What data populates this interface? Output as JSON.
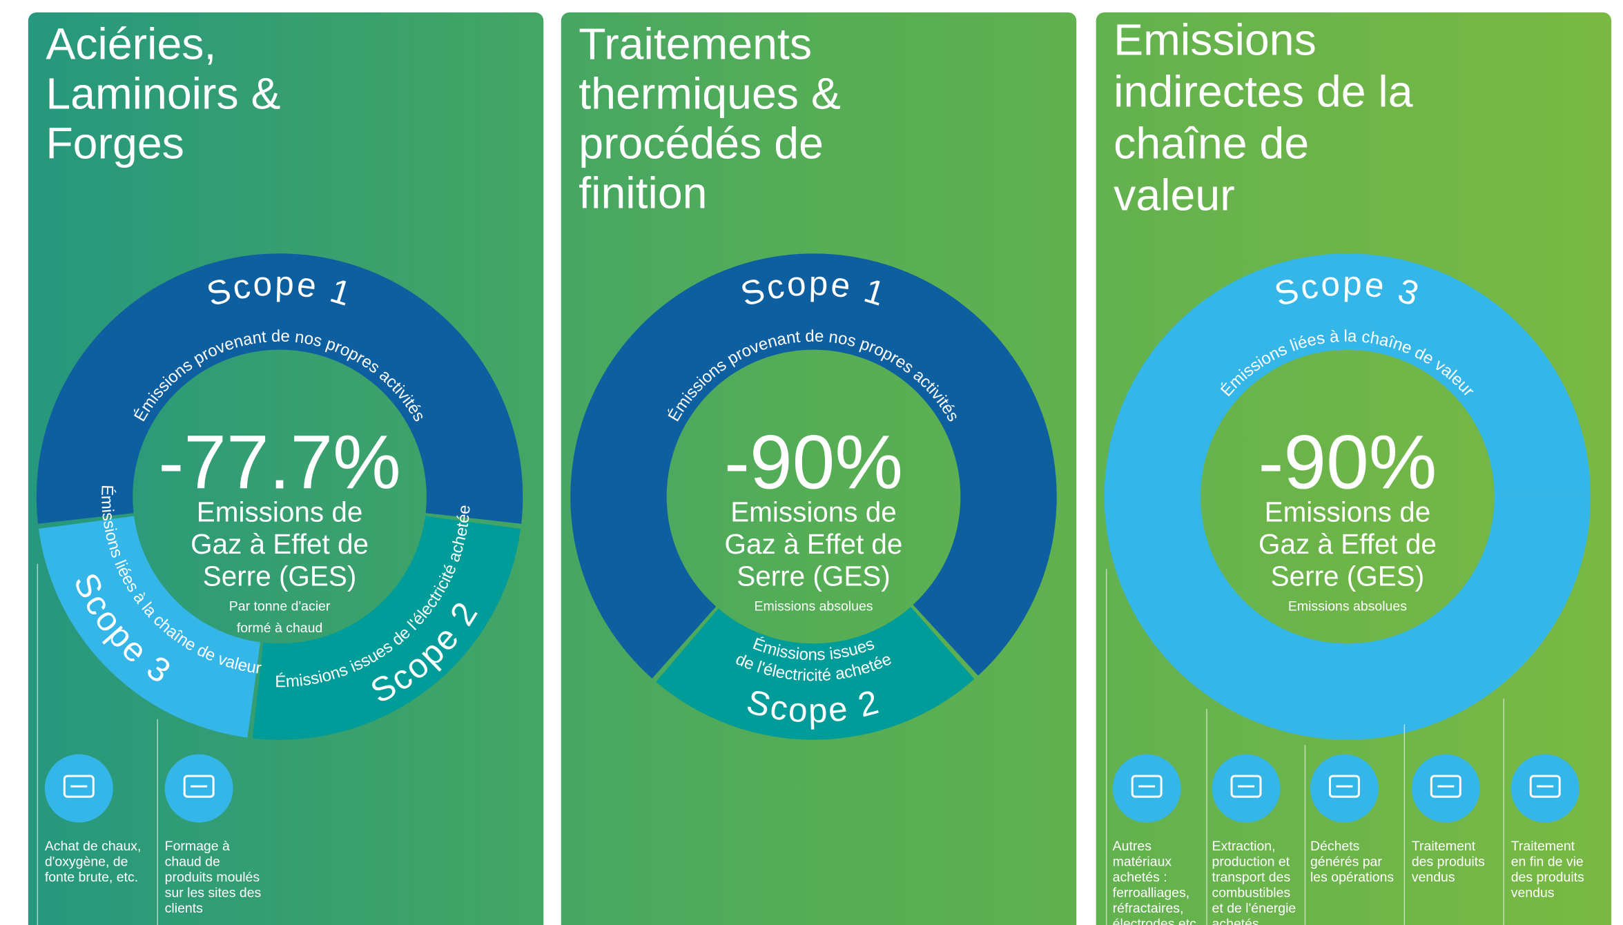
{
  "panels": [
    {
      "title": [
        "Aciéries,",
        "Laminoirs &",
        "Forges"
      ],
      "scopes": [
        {
          "name": "Scope 1",
          "description": [
            "Émissions provenant de nos propres activités"
          ]
        },
        {
          "name": "Scope 2",
          "description": [
            "Émissions issues de l'électricité achetée"
          ]
        },
        {
          "name": "Scope 3",
          "description": [
            "Émissions liées à la chaîne de valeur"
          ]
        }
      ],
      "reduction": "-77.7%",
      "metric": [
        "Emissions de",
        "Gaz à Effet de",
        "Serre (GES)"
      ],
      "note": [
        "Par tonne d'acier",
        "formé à chaud"
      ],
      "items": [
        {
          "label": [
            "Achat de chaux,",
            "d'oxygène, de",
            "fonte brute, etc."
          ]
        },
        {
          "label": [
            "Formage à",
            "chaud de",
            "produits moulés",
            "sur les sites des",
            "clients"
          ]
        }
      ]
    },
    {
      "title": [
        "Traitements",
        "thermiques &",
        "procédés de",
        "finition"
      ],
      "scopes": [
        {
          "name": "Scope 1",
          "description": [
            "Émissions provenant de nos propres activités"
          ]
        },
        {
          "name": "Scope 2",
          "description": [
            "Émissions issues",
            "de l'électricité achetée"
          ]
        }
      ],
      "reduction": "-90%",
      "metric": [
        "Emissions de",
        "Gaz à Effet de",
        "Serre (GES)"
      ],
      "note": [
        "Emissions absolues"
      ]
    },
    {
      "title": [
        "Emissions",
        "indirectes de la",
        "chaîne de",
        "valeur"
      ],
      "scopes": [
        {
          "name": "Scope 3",
          "description": [
            "Émissions liées à la chaîne de valeur"
          ]
        }
      ],
      "reduction": "-90%",
      "metric": [
        "Emissions de",
        "Gaz à Effet de",
        "Serre (GES)"
      ],
      "note": [
        "Emissions absolues"
      ],
      "items": [
        {
          "label": [
            "Autres",
            "matériaux",
            "achetés :",
            "ferroalliages,",
            "réfractaires,",
            "électrodes,etc."
          ]
        },
        {
          "label": [
            "Extraction,",
            "production et",
            "transport des",
            "combustibles",
            "et de l'énergie",
            "achetés"
          ]
        },
        {
          "label": [
            "Déchets",
            "générés par",
            "les opérations"
          ]
        },
        {
          "label": [
            "Traitement",
            "des produits",
            "vendus"
          ]
        },
        {
          "label": [
            "Traitement",
            "en fin de vie",
            "des produits",
            "vendus"
          ]
        }
      ]
    }
  ]
}
